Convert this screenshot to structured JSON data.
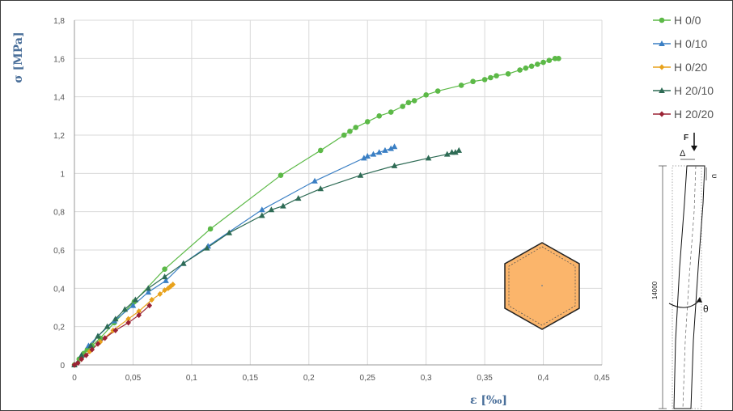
{
  "chart_data": {
    "type": "line",
    "xlabel": "ε [‰]",
    "ylabel": "σ [MPa]",
    "xlim": [
      0,
      0.45
    ],
    "ylim": [
      0,
      1.8
    ],
    "x_ticks": [
      "0",
      "0,05",
      "0,1",
      "0,15",
      "0,2",
      "0,25",
      "0,3",
      "0,35",
      "0,4",
      "0,45"
    ],
    "y_ticks": [
      "0",
      "0,2",
      "0,4",
      "0,6",
      "0,8",
      "1",
      "1,2",
      "1,4",
      "1,6",
      "1,8"
    ],
    "grid": true,
    "legend_position": "right",
    "series": [
      {
        "name": "H 0/0",
        "color": "#5cb947",
        "marker": "circle",
        "x": [
          0,
          0.004,
          0.008,
          0.011,
          0.015,
          0.022,
          0.034,
          0.051,
          0.077,
          0.116,
          0.176,
          0.21,
          0.23,
          0.235,
          0.24,
          0.25,
          0.26,
          0.27,
          0.28,
          0.285,
          0.29,
          0.3,
          0.31,
          0.33,
          0.34,
          0.35,
          0.355,
          0.36,
          0.37,
          0.38,
          0.385,
          0.39,
          0.395,
          0.4,
          0.405,
          0.41,
          0.413
        ],
        "y": [
          0,
          0.03,
          0.06,
          0.08,
          0.1,
          0.14,
          0.22,
          0.33,
          0.5,
          0.71,
          0.99,
          1.12,
          1.2,
          1.22,
          1.24,
          1.27,
          1.3,
          1.32,
          1.35,
          1.37,
          1.38,
          1.41,
          1.43,
          1.46,
          1.48,
          1.49,
          1.5,
          1.51,
          1.52,
          1.54,
          1.55,
          1.56,
          1.57,
          1.58,
          1.59,
          1.6,
          1.6
        ]
      },
      {
        "name": "H 0/10",
        "color": "#3a7fc4",
        "marker": "triangle",
        "x": [
          0,
          0.006,
          0.012,
          0.02,
          0.034,
          0.05,
          0.063,
          0.078,
          0.093,
          0.114,
          0.16,
          0.205,
          0.247,
          0.25,
          0.255,
          0.26,
          0.265,
          0.27,
          0.273
        ],
        "y": [
          0,
          0.05,
          0.1,
          0.15,
          0.23,
          0.31,
          0.38,
          0.44,
          0.53,
          0.62,
          0.81,
          0.96,
          1.08,
          1.09,
          1.1,
          1.11,
          1.12,
          1.13,
          1.14
        ]
      },
      {
        "name": "H 0/20",
        "color": "#e8a21c",
        "marker": "diamond",
        "x": [
          0,
          0.006,
          0.013,
          0.022,
          0.033,
          0.046,
          0.055,
          0.066,
          0.073,
          0.077,
          0.08,
          0.082,
          0.084
        ],
        "y": [
          0,
          0.03,
          0.07,
          0.12,
          0.18,
          0.24,
          0.28,
          0.34,
          0.37,
          0.39,
          0.4,
          0.41,
          0.42
        ]
      },
      {
        "name": "H 20/10",
        "color": "#2e6b55",
        "marker": "triangle",
        "x": [
          0,
          0.006,
          0.014,
          0.02,
          0.028,
          0.035,
          0.043,
          0.052,
          0.063,
          0.077,
          0.093,
          0.113,
          0.132,
          0.16,
          0.168,
          0.178,
          0.191,
          0.21,
          0.244,
          0.273,
          0.302,
          0.318,
          0.322,
          0.325,
          0.328
        ],
        "y": [
          0,
          0.05,
          0.1,
          0.15,
          0.2,
          0.24,
          0.29,
          0.34,
          0.4,
          0.46,
          0.53,
          0.61,
          0.69,
          0.78,
          0.81,
          0.83,
          0.87,
          0.92,
          0.99,
          1.04,
          1.08,
          1.1,
          1.11,
          1.11,
          1.12
        ]
      },
      {
        "name": "H 20/20",
        "color": "#9b2335",
        "marker": "diamond",
        "x": [
          0,
          0.003,
          0.006,
          0.01,
          0.015,
          0.02,
          0.026,
          0.035,
          0.046,
          0.055,
          0.064
        ],
        "y": [
          0,
          0.01,
          0.03,
          0.05,
          0.08,
          0.11,
          0.14,
          0.18,
          0.22,
          0.26,
          0.31
        ]
      }
    ]
  },
  "sketch": {
    "force_label": "F",
    "delta_label": "Δ",
    "u_label": "υ",
    "height_label": "14000",
    "theta_label": "θ",
    "hexagon_fill": "#fbb56b"
  }
}
